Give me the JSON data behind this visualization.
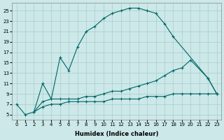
{
  "xlabel": "Humidex (Indice chaleur)",
  "bg_color": "#cce8e8",
  "grid_color": "#aacccc",
  "line_color": "#006666",
  "xlim": [
    -0.5,
    23.5
  ],
  "ylim": [
    4.0,
    26.5
  ],
  "xticks": [
    0,
    1,
    2,
    3,
    4,
    5,
    6,
    7,
    8,
    9,
    10,
    11,
    12,
    13,
    14,
    15,
    16,
    17,
    18,
    19,
    20,
    21,
    22,
    23
  ],
  "yticks": [
    5,
    7,
    9,
    11,
    13,
    15,
    17,
    19,
    21,
    23,
    25
  ],
  "line1_x": [
    0,
    1,
    2,
    3,
    4,
    5,
    6,
    7,
    8,
    9,
    10,
    11,
    12,
    13,
    14,
    15,
    16,
    17,
    18,
    22,
    23
  ],
  "line1_y": [
    7.0,
    5.0,
    5.5,
    11.0,
    8.0,
    16.0,
    13.5,
    18.0,
    21.0,
    22.0,
    23.5,
    24.5,
    25.0,
    25.5,
    25.5,
    25.0,
    24.5,
    22.5,
    20.0,
    12.0,
    9.0
  ],
  "line2_x": [
    2,
    3,
    4,
    5,
    6,
    7,
    8,
    9,
    10,
    11,
    12,
    13,
    14,
    15,
    16,
    17,
    18,
    19,
    20,
    22,
    23
  ],
  "line2_y": [
    5.5,
    7.5,
    8.0,
    8.0,
    8.0,
    8.0,
    8.5,
    8.5,
    9.0,
    9.5,
    9.5,
    10.0,
    10.5,
    11.0,
    11.5,
    12.5,
    13.5,
    14.0,
    15.5,
    12.0,
    9.0
  ],
  "line3_x": [
    2,
    3,
    4,
    5,
    6,
    7,
    8,
    9,
    10,
    11,
    12,
    13,
    14,
    15,
    16,
    17,
    18,
    19,
    20,
    21,
    22,
    23
  ],
  "line3_y": [
    5.5,
    6.5,
    7.0,
    7.0,
    7.5,
    7.5,
    7.5,
    7.5,
    7.5,
    8.0,
    8.0,
    8.0,
    8.0,
    8.5,
    8.5,
    8.5,
    9.0,
    9.0,
    9.0,
    9.0,
    9.0,
    9.0
  ]
}
